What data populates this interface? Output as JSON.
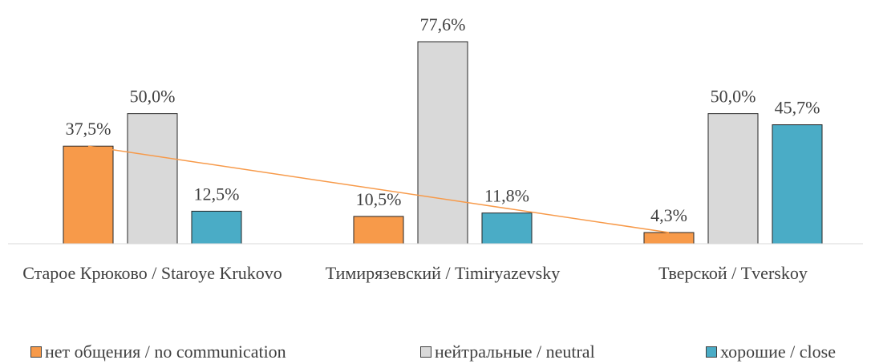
{
  "chart_data": {
    "type": "bar",
    "categories": [
      "Старое Крюково / Staroye Krukovo",
      "Тимирязевский / Timiryazevsky",
      "Тверской / Tverskoy"
    ],
    "series": [
      {
        "name": "нет общения / no communication",
        "color": "#f79a4a",
        "values": [
          37.5,
          10.5,
          4.3
        ],
        "value_labels": [
          "37,5%",
          "10,5%",
          "4,3%"
        ]
      },
      {
        "name": "нейтральные / neutral",
        "color": "#d9d9d9",
        "values": [
          50.0,
          77.6,
          50.0
        ],
        "value_labels": [
          "50,0%",
          "77,6%",
          "50,0%"
        ]
      },
      {
        "name": "хорошие / close",
        "color": "#4aacc6",
        "values": [
          12.5,
          11.8,
          45.7
        ],
        "value_labels": [
          "12,5%",
          "11,8%",
          "45,7%"
        ]
      }
    ],
    "trendline_color": "#f79a4a"
  }
}
